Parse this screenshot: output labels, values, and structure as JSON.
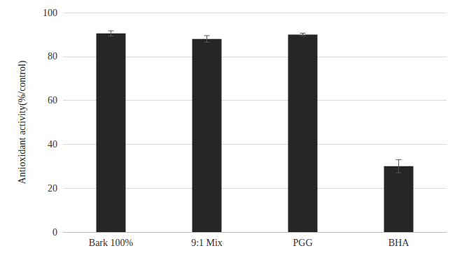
{
  "chart_data": {
    "type": "bar",
    "y_label": "Antioxidant activity(%/control)",
    "categories": [
      "Bark 100%",
      "9:1 Mix",
      "PGG",
      "BHA"
    ],
    "values": [
      90.5,
      88,
      90,
      30
    ],
    "errors": [
      1.2,
      1.5,
      0.6,
      3
    ],
    "color": "#262626",
    "ylim": [
      0,
      100
    ],
    "yticks": [
      0,
      20,
      40,
      60,
      80,
      100
    ],
    "grid": true
  }
}
